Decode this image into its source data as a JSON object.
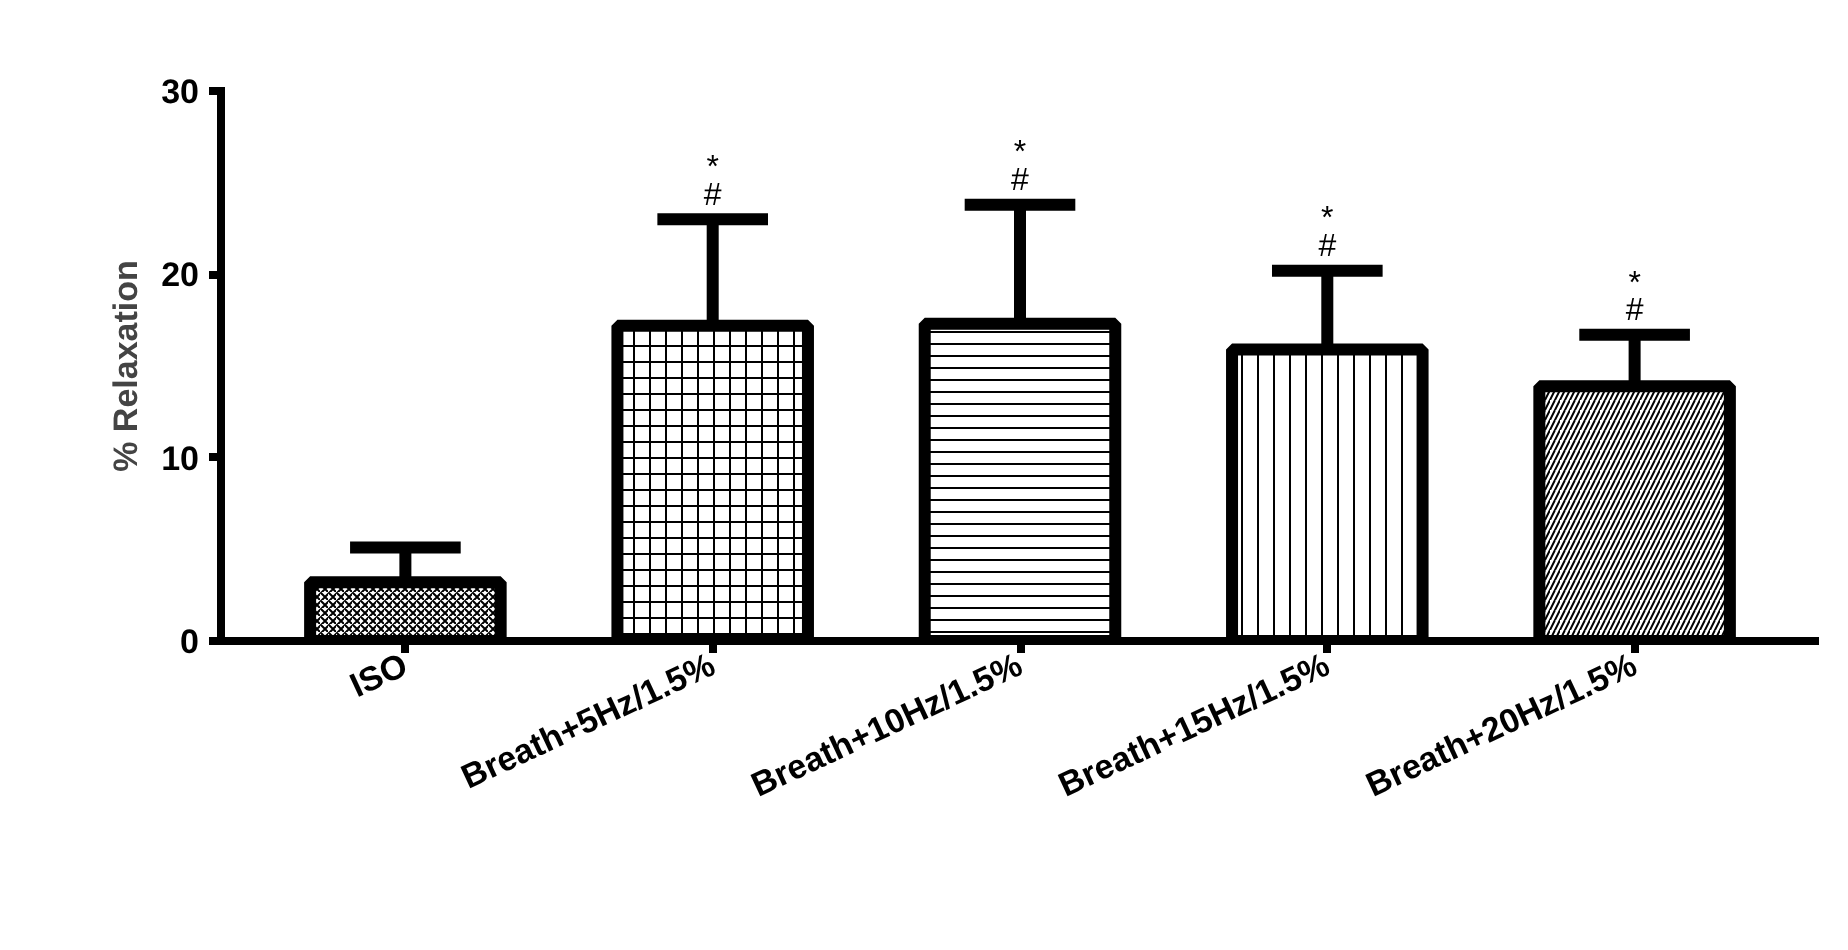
{
  "chart_data": {
    "type": "bar",
    "ylabel": "% Relaxation",
    "categories": [
      "ISO",
      "Breath+5Hz/1.5%",
      "Breath+10Hz/1.5%",
      "Breath+15Hz/1.5%",
      "Breath+20Hz/1.5%"
    ],
    "values": [
      3.2,
      17.2,
      17.3,
      15.9,
      13.9
    ],
    "errors": [
      [
        3.2,
        5.1
      ],
      [
        17.2,
        23.0
      ],
      [
        17.3,
        23.8
      ],
      [
        15.9,
        20.2
      ],
      [
        13.9,
        16.7
      ]
    ],
    "color": "#000000",
    "ylim": [
      0,
      30
    ],
    "yticks": [
      0,
      10,
      20,
      30
    ],
    "grid": false,
    "annotations": [
      "*",
      "#",
      "*",
      "#",
      "*",
      "#",
      "*",
      "#"
    ]
  }
}
